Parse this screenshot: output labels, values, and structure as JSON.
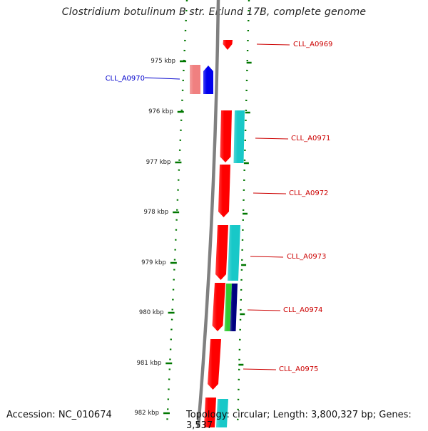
{
  "title": "Clostridium botulinum B str. Eklund 17B, complete genome",
  "footer": {
    "accession": "Accession: NC_010674",
    "summary": "Topology: circular; Length: 3,800,327 bp; Genes: 3,537"
  },
  "ticks": [
    {
      "label": "975 kbp"
    },
    {
      "label": "976 kbp"
    },
    {
      "label": "977 kbp"
    },
    {
      "label": "978 kbp"
    },
    {
      "label": "979 kbp"
    },
    {
      "label": "980 kbp"
    },
    {
      "label": "981 kbp"
    },
    {
      "label": "982 kbp"
    }
  ],
  "genes": [
    {
      "name": "CLL_A0969",
      "strand": "reverse",
      "color": "#dd0000"
    },
    {
      "name": "CLL_A0970",
      "strand": "forward",
      "color": "#0000ee"
    },
    {
      "name": "CLL_A0971",
      "strand": "reverse",
      "color": "#dd0000"
    },
    {
      "name": "CLL_A0972",
      "strand": "reverse",
      "color": "#dd0000"
    },
    {
      "name": "CLL_A0973",
      "strand": "reverse",
      "color": "#dd0000"
    },
    {
      "name": "CLL_A0974",
      "strand": "reverse",
      "color": "#dd0000"
    },
    {
      "name": "CLL_A0975",
      "strand": "reverse",
      "color": "#dd0000"
    }
  ],
  "colors": {
    "backbone": "#808080",
    "tick": "#007700",
    "cds_red": "#ff0000",
    "cds_pink": "#f08080",
    "cds_blue": "#0000ee",
    "cds_cyan": "#18c8c8",
    "cds_green": "#33cc33",
    "cds_navy": "#000080",
    "label_red": "#cc0000",
    "label_blue": "#0000cc"
  }
}
